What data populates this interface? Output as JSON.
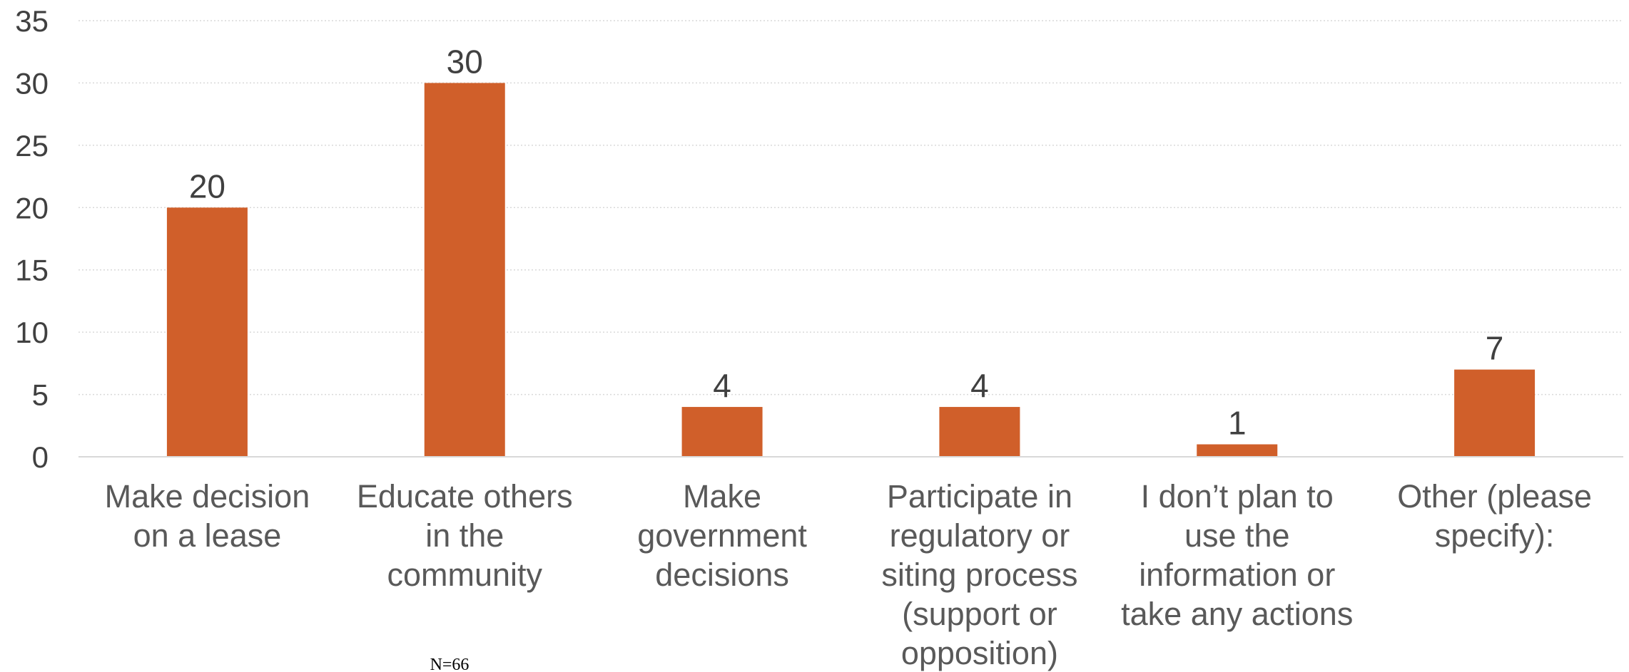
{
  "chart_data": {
    "type": "bar",
    "categories": [
      [
        "Make decision",
        "on a lease"
      ],
      [
        "Educate others",
        "in the",
        "community"
      ],
      [
        "Make",
        "government",
        "decisions"
      ],
      [
        "Participate in",
        "regulatory or",
        "siting process",
        "(support or",
        "opposition)"
      ],
      [
        "I don’t plan to",
        "use the",
        "information or",
        "take any actions"
      ],
      [
        "Other (please",
        "specify):"
      ]
    ],
    "values": [
      20,
      30,
      4,
      4,
      1,
      7
    ],
    "data_labels": [
      "20",
      "30",
      "4",
      "4",
      "1",
      "7"
    ],
    "ylim": [
      0,
      35
    ],
    "yticks": [
      0,
      5,
      10,
      15,
      20,
      25,
      30,
      35
    ],
    "grid": true,
    "bar_color": "#D05F2A",
    "grid_color": "#D9D9D9",
    "axis_color": "#D9D9D9",
    "note": "N=66"
  }
}
